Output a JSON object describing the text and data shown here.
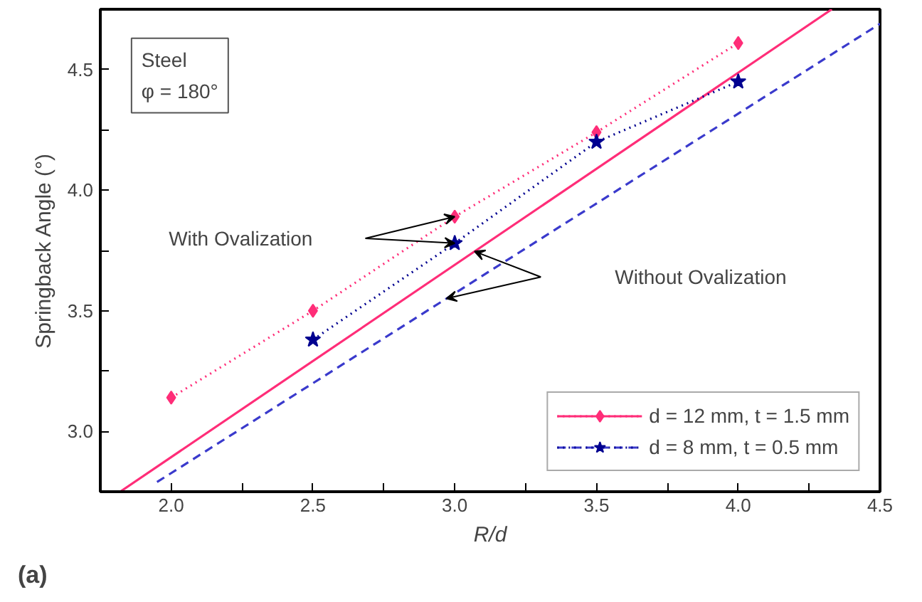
{
  "chart_data": {
    "type": "line",
    "xlabel": "R/d",
    "ylabel": "Springback Angle (°)",
    "xlim": [
      1.75,
      4.5
    ],
    "ylim": [
      2.75,
      4.75
    ],
    "xticks": [
      {
        "value": 2.0,
        "label": "2.0"
      },
      {
        "value": 2.25,
        "label": null
      },
      {
        "value": 2.5,
        "label": "2.5"
      },
      {
        "value": 2.75,
        "label": null
      },
      {
        "value": 3.0,
        "label": "3.0"
      },
      {
        "value": 3.25,
        "label": null
      },
      {
        "value": 3.5,
        "label": "3.5"
      },
      {
        "value": 3.75,
        "label": null
      },
      {
        "value": 4.0,
        "label": "4.0"
      },
      {
        "value": 4.25,
        "label": null
      },
      {
        "value": 4.5,
        "label": "4.5"
      }
    ],
    "yticks": [
      {
        "value": 3.0,
        "label": "3.0"
      },
      {
        "value": 3.25,
        "label": null
      },
      {
        "value": 3.5,
        "label": "3.5"
      },
      {
        "value": 3.75,
        "label": null
      },
      {
        "value": 4.0,
        "label": "4.0"
      },
      {
        "value": 4.25,
        "label": null
      },
      {
        "value": 4.5,
        "label": "4.5"
      }
    ],
    "grid": false,
    "legend": "bottom right",
    "series": [
      {
        "type": "line",
        "color": "#ff2d78",
        "line_style": "solid",
        "marker": "none",
        "x": [
          1.82,
          4.33
        ],
        "values": [
          2.75,
          4.75
        ]
      },
      {
        "color": "#3a3acc",
        "line_style": "dashed",
        "marker": "none",
        "x": [
          1.95,
          4.5
        ],
        "values": [
          2.79,
          4.69
        ]
      },
      {
        "name": "d = 12 mm, t = 1.5 mm",
        "color": "#ff2d78",
        "line_style": "dotted",
        "marker": "diamond",
        "x": [
          2.0,
          2.5,
          3.0,
          3.5,
          4.0
        ],
        "values": [
          3.14,
          3.5,
          3.89,
          4.24,
          4.61
        ]
      },
      {
        "name": "d = 8 mm, t = 0.5 mm",
        "color": "#000090",
        "line_style": "dotted",
        "marker": "star",
        "x": [
          2.5,
          3.0,
          3.5,
          4.0
        ],
        "values": [
          3.38,
          3.78,
          4.2,
          4.45
        ]
      }
    ],
    "annotations": [
      "Steel\nφ = 180°",
      "(a)",
      "With Ovalization",
      "Without Ovalization"
    ]
  }
}
